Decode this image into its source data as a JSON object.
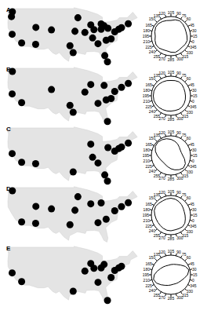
{
  "chart_data": [
    {
      "type": "scatter",
      "title": "A",
      "color": "#000000",
      "tick_labels": false,
      "xlim": [
        -125,
        -66
      ],
      "ylim": [
        24,
        50
      ],
      "x": [
        -74,
        -71,
        -75.2,
        -77,
        -84.4,
        -80.2,
        -87.6,
        -83,
        -95.4,
        -96.8,
        -105,
        -112,
        -118.2,
        -122.4,
        -122.3,
        -93.3,
        -90.2,
        -80.8,
        -86.8,
        -81.7,
        -80,
        -81.4,
        -94.6,
        -111.9,
        -122.7,
        -78.6,
        -83,
        -86.2
      ],
      "y": [
        40.7,
        42.4,
        40,
        38.9,
        33.7,
        25.8,
        41.9,
        42.3,
        29.8,
        32.8,
        39.7,
        33.4,
        34,
        37.8,
        47.6,
        45,
        38.6,
        35.2,
        36.2,
        41.5,
        40.4,
        28.5,
        39.1,
        40.8,
        45.5,
        35.8,
        40,
        39.8
      ]
    },
    {
      "type": "radar",
      "color": "#000000",
      "tick_labels": "x",
      "ylim": [
        0,
        1
      ],
      "categories": [
        "0",
        "15",
        "30",
        "45",
        "60",
        "75",
        "90",
        "105",
        "120",
        "135",
        "150",
        "165",
        "180",
        "195",
        "210",
        "225",
        "240",
        "255",
        "270",
        "285",
        "300",
        "315",
        "330",
        "345"
      ],
      "values": [
        0.8,
        0.82,
        0.86,
        0.9,
        0.86,
        0.8,
        0.82,
        0.86,
        0.9,
        0.9,
        0.85,
        0.8,
        0.84,
        0.88,
        0.86,
        0.8,
        0.78,
        0.82,
        0.86,
        0.82,
        0.8,
        0.84,
        0.86,
        0.82
      ]
    },
    {
      "type": "scatter",
      "title": "B",
      "color": "#000000",
      "tick_labels": false,
      "xlim": [
        -125,
        -66
      ],
      "ylim": [
        24,
        50
      ],
      "x": [
        -74,
        -71,
        -77,
        -84.4,
        -80.2,
        -87.6,
        -95.4,
        -96.8,
        -105,
        -118.2,
        -122.4,
        -122.3,
        -90.2,
        -80.8,
        -81.7,
        -78.6
      ],
      "y": [
        40.7,
        42.4,
        38.9,
        33.7,
        25.8,
        41.9,
        29.8,
        32.8,
        39.7,
        34,
        37.8,
        47.6,
        38.6,
        35.2,
        41.5,
        35.8
      ]
    },
    {
      "type": "radar",
      "color": "#000000",
      "tick_labels": "x",
      "ylim": [
        0,
        1
      ],
      "categories": [
        "0",
        "15",
        "30",
        "45",
        "60",
        "75",
        "90",
        "105",
        "120",
        "135",
        "150",
        "165",
        "180",
        "195",
        "210",
        "225",
        "240",
        "255",
        "270",
        "285",
        "300",
        "315",
        "330",
        "345"
      ],
      "values": [
        0.74,
        0.76,
        0.8,
        0.82,
        0.8,
        0.78,
        0.8,
        0.82,
        0.85,
        0.88,
        0.9,
        0.9,
        0.9,
        0.88,
        0.85,
        0.82,
        0.8,
        0.78,
        0.78,
        0.8,
        0.8,
        0.78,
        0.76,
        0.74
      ]
    },
    {
      "type": "scatter",
      "title": "C",
      "color": "#000000",
      "tick_labels": false,
      "xlim": [
        -125,
        -66
      ],
      "ylim": [
        24,
        50
      ],
      "x": [
        -74,
        -71,
        -75.2,
        -77,
        -84.4,
        -80.2,
        -87.6,
        -95.4,
        -112,
        -118.2,
        -122.4,
        -86.8,
        -80,
        -81.4
      ],
      "y": [
        40.7,
        42.4,
        40,
        38.9,
        33.7,
        25.8,
        41.9,
        29.8,
        33.4,
        34,
        37.8,
        36.2,
        40.4,
        28.5
      ]
    },
    {
      "type": "radar",
      "color": "#000000",
      "tick_labels": "x",
      "ylim": [
        0,
        1
      ],
      "categories": [
        "0",
        "15",
        "30",
        "45",
        "60",
        "75",
        "90",
        "105",
        "120",
        "135",
        "150",
        "165",
        "180",
        "195",
        "210",
        "225",
        "240",
        "255",
        "270",
        "285",
        "300",
        "315",
        "330",
        "345"
      ],
      "values": [
        0.55,
        0.55,
        0.6,
        0.68,
        0.75,
        0.82,
        0.88,
        0.92,
        0.95,
        0.92,
        0.82,
        0.7,
        0.6,
        0.55,
        0.52,
        0.55,
        0.6,
        0.68,
        0.76,
        0.84,
        0.9,
        0.85,
        0.72,
        0.6
      ]
    },
    {
      "type": "scatter",
      "title": "D",
      "color": "#000000",
      "tick_labels": false,
      "xlim": [
        -125,
        -66
      ],
      "ylim": [
        24,
        50
      ],
      "x": [
        -74,
        -71,
        -77,
        -84.4,
        -87.6,
        -83,
        -96.8,
        -105,
        -112,
        -118.2,
        -122.3,
        -93.3,
        -80.8,
        -94.6,
        -111.9
      ],
      "y": [
        40.7,
        42.4,
        38.9,
        33.7,
        41.9,
        42.3,
        32.8,
        39.7,
        33.4,
        34,
        47.6,
        45,
        35.2,
        39.1,
        40.8
      ]
    },
    {
      "type": "radar",
      "color": "#000000",
      "tick_labels": "x",
      "ylim": [
        0,
        1
      ],
      "categories": [
        "0",
        "15",
        "30",
        "45",
        "60",
        "75",
        "90",
        "105",
        "120",
        "135",
        "150",
        "165",
        "180",
        "195",
        "210",
        "225",
        "240",
        "255",
        "270",
        "285",
        "300",
        "315",
        "330",
        "345"
      ],
      "values": [
        0.7,
        0.72,
        0.76,
        0.8,
        0.84,
        0.86,
        0.85,
        0.84,
        0.86,
        0.9,
        0.88,
        0.82,
        0.78,
        0.76,
        0.76,
        0.78,
        0.8,
        0.8,
        0.78,
        0.8,
        0.84,
        0.82,
        0.76,
        0.72
      ]
    },
    {
      "type": "scatter",
      "title": "E",
      "color": "#000000",
      "tick_labels": false,
      "xlim": [
        -125,
        -66
      ],
      "ylim": [
        24,
        50
      ],
      "x": [
        -74,
        -75.2,
        -77,
        -84.4,
        -80.2,
        -87.6,
        -95.4,
        -118.2,
        -122.4,
        -90.2,
        -81.7,
        -78.6,
        -83,
        -86.2
      ],
      "y": [
        40.7,
        40,
        38.9,
        33.7,
        25.8,
        41.9,
        29.8,
        34,
        37.8,
        38.6,
        41.5,
        35.8,
        40,
        39.8
      ]
    },
    {
      "type": "radar",
      "color": "#000000",
      "tick_labels": "x",
      "ylim": [
        0,
        1
      ],
      "categories": [
        "0",
        "15",
        "30",
        "45",
        "60",
        "75",
        "90",
        "105",
        "120",
        "135",
        "150",
        "165",
        "180",
        "195",
        "210",
        "225",
        "240",
        "255",
        "270",
        "285",
        "300",
        "315",
        "330",
        "345"
      ],
      "values": [
        0.95,
        0.85,
        0.7,
        0.6,
        0.55,
        0.52,
        0.5,
        0.52,
        0.56,
        0.62,
        0.72,
        0.85,
        0.92,
        0.85,
        0.72,
        0.62,
        0.56,
        0.52,
        0.5,
        0.52,
        0.55,
        0.6,
        0.7,
        0.85
      ]
    }
  ]
}
